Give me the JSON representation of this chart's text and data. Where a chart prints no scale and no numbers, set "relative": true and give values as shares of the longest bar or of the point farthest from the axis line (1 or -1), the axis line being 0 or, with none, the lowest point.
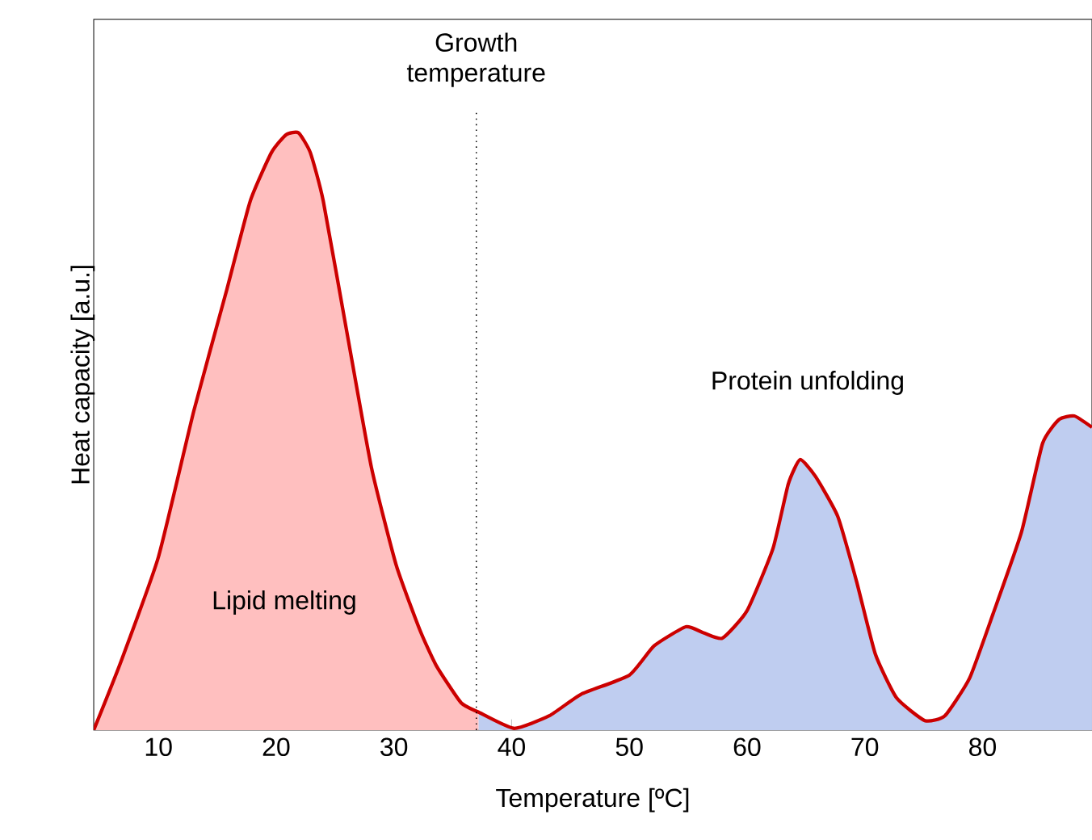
{
  "chart_data": {
    "type": "area",
    "xlabel": "Temperature [ºC]",
    "ylabel": "Heat capacity [a.u.]",
    "relative": true,
    "xlim": [
      4.5,
      89.3
    ],
    "xticks": [
      10,
      20,
      30,
      40,
      50,
      60,
      70,
      80
    ],
    "grid": false,
    "series": [
      {
        "color": "#ffbfbf",
        "x": [
          4.5,
          6.8,
          10,
          13,
          15.8,
          17.8,
          19.6,
          20.85,
          21.9,
          22.9,
          24,
          26.1,
          28.1,
          30.2,
          32.2,
          33.6,
          35.7,
          37.2
        ],
        "values": [
          0,
          0.114,
          0.29,
          0.534,
          0.737,
          0.886,
          0.967,
          0.997,
          1,
          0.967,
          0.886,
          0.656,
          0.439,
          0.276,
          0.168,
          0.108,
          0.046,
          0.03
        ]
      },
      {
        "color": "#bfcdf0",
        "x": [
          37.2,
          40.2,
          43.2,
          45.9,
          50,
          52.1,
          54.8,
          56.3,
          57.9,
          60,
          62.2,
          63.5,
          64.5,
          65.8,
          67.7,
          69.3,
          70.9,
          72.7,
          75.1,
          76.8,
          78.9,
          80.9,
          83.3,
          85.1,
          86.5,
          87.8,
          89.3
        ],
        "values": [
          0.03,
          0.003,
          0.024,
          0.06,
          0.092,
          0.141,
          0.173,
          0.163,
          0.154,
          0.2,
          0.304,
          0.412,
          0.453,
          0.425,
          0.358,
          0.249,
          0.127,
          0.054,
          0.016,
          0.024,
          0.087,
          0.195,
          0.331,
          0.48,
          0.52,
          0.526,
          0.507
        ]
      },
      {
        "type": "line",
        "color": "#cc0000",
        "x": [
          4.5,
          6.8,
          10,
          13,
          15.8,
          17.8,
          19.6,
          20.85,
          21.9,
          22.9,
          24,
          26.1,
          28.1,
          30.2,
          32.2,
          33.6,
          35.7,
          37.2,
          40.2,
          43.2,
          45.9,
          50,
          52.1,
          54.8,
          56.3,
          57.9,
          60,
          62.2,
          63.5,
          64.5,
          65.8,
          67.7,
          69.3,
          70.9,
          72.7,
          75.1,
          76.8,
          78.9,
          80.9,
          83.3,
          85.1,
          86.5,
          87.8,
          89.3
        ],
        "values": [
          0,
          0.114,
          0.29,
          0.534,
          0.737,
          0.886,
          0.967,
          0.997,
          1,
          0.967,
          0.886,
          0.656,
          0.439,
          0.276,
          0.168,
          0.108,
          0.046,
          0.03,
          0.003,
          0.024,
          0.06,
          0.092,
          0.141,
          0.173,
          0.163,
          0.154,
          0.2,
          0.304,
          0.412,
          0.453,
          0.425,
          0.358,
          0.249,
          0.127,
          0.054,
          0.016,
          0.024,
          0.087,
          0.195,
          0.331,
          0.48,
          0.52,
          0.526,
          0.507
        ]
      }
    ],
    "ref_lines": [
      {
        "axis": "x",
        "value": 37,
        "label": "Growth temperature",
        "line_style": "dotted",
        "color": "#000000"
      }
    ],
    "annotations": [
      "Lipid melting",
      "Protein unfolding"
    ]
  }
}
